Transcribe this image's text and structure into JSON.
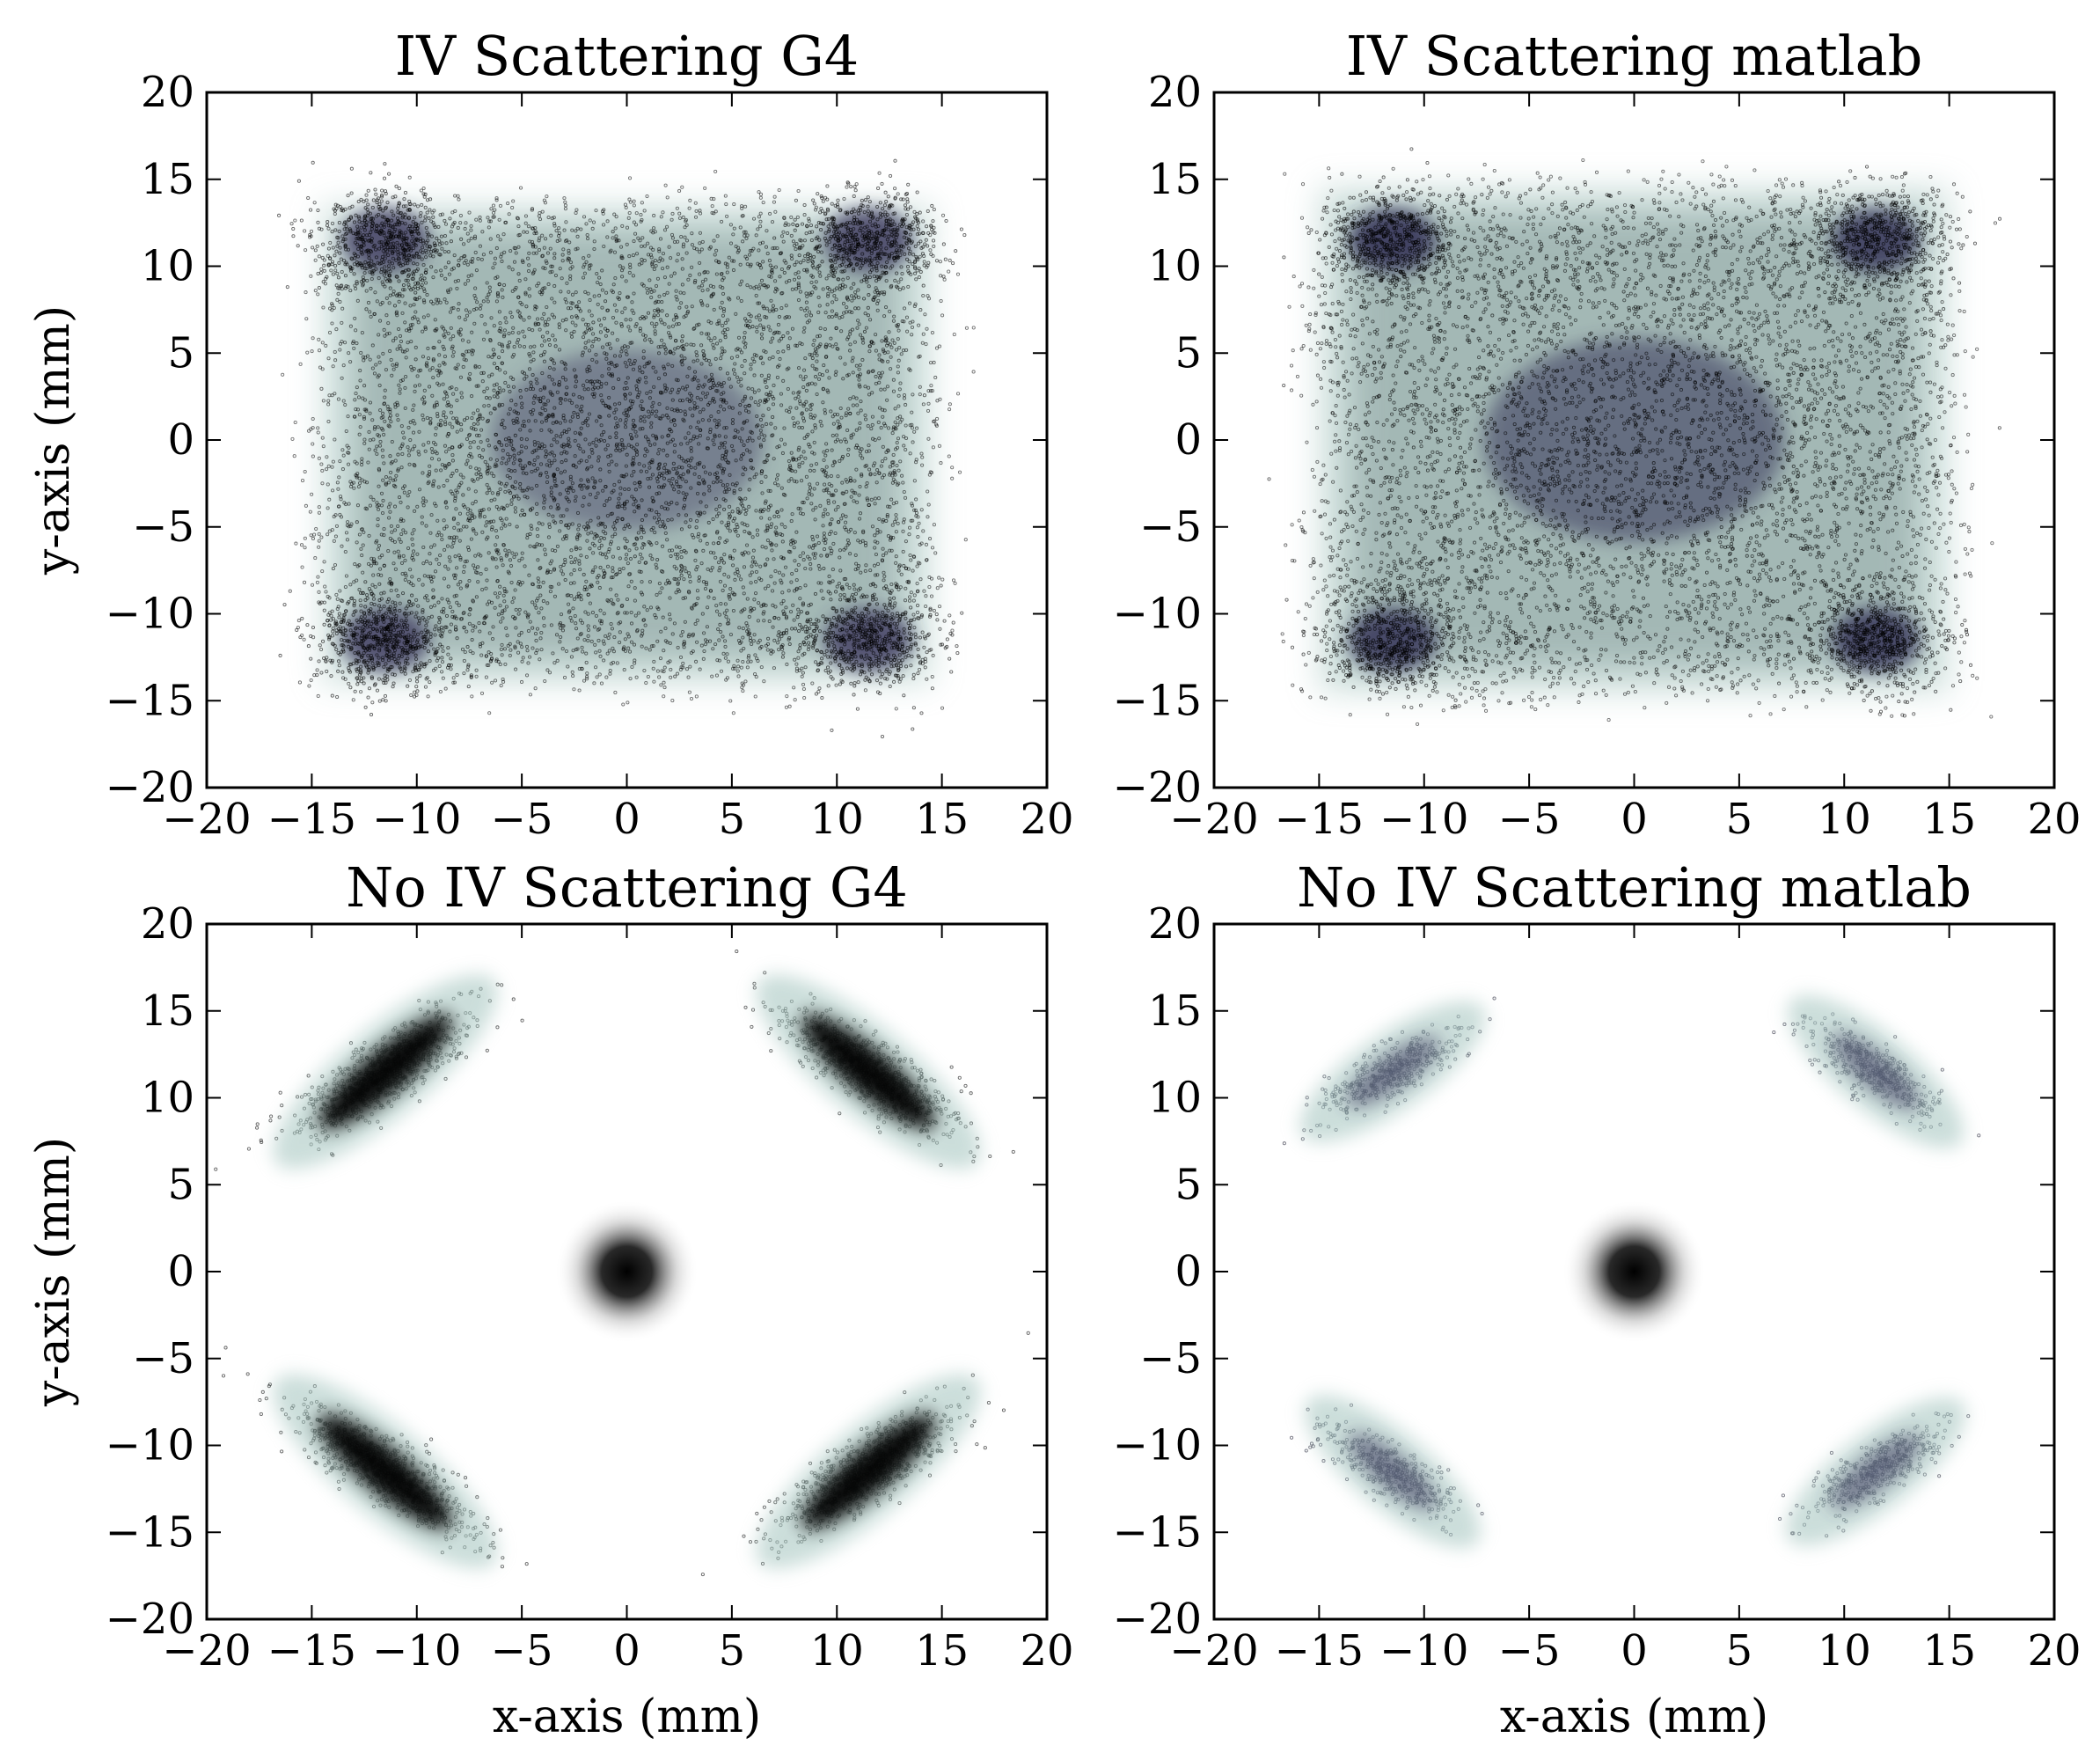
{
  "figure": {
    "xlabel": "x-axis (mm)",
    "ylabel": "y-axis (mm)"
  },
  "chart_data": [
    {
      "type": "scatter",
      "title": "IV Scattering G4",
      "ylabel": "y-axis (mm)",
      "xlabel": "",
      "xlim": [
        -20,
        20
      ],
      "ylim": [
        -20,
        20
      ],
      "xticks": [
        -20,
        -15,
        -10,
        -5,
        0,
        5,
        10,
        15,
        20
      ],
      "yticks": [
        -20,
        -15,
        -10,
        -5,
        0,
        5,
        10,
        15,
        20
      ],
      "grid": false,
      "colors": {
        "density": "#4b4a6a",
        "halo": "#a9c8c2",
        "points": "#000000"
      },
      "density": [
        {
          "x": -11.5,
          "y": 11.5,
          "sx": 1.6,
          "sy": 1.4,
          "w": 0.9
        },
        {
          "x": 11.5,
          "y": 11.5,
          "sx": 1.6,
          "sy": 1.4,
          "w": 0.9
        },
        {
          "x": -11.5,
          "y": -11.5,
          "sx": 1.6,
          "sy": 1.4,
          "w": 0.9
        },
        {
          "x": 11.5,
          "y": -11.5,
          "sx": 1.6,
          "sy": 1.4,
          "w": 0.9
        },
        {
          "x": 0,
          "y": 0,
          "sx": 5.0,
          "sy": 4.0,
          "w": 0.5
        }
      ],
      "scatter_region": {
        "xmin": -14.5,
        "xmax": 14.5,
        "ymin": -14.0,
        "ymax": 13.5
      }
    },
    {
      "type": "scatter",
      "title": "IV Scattering matlab",
      "ylabel": "",
      "xlabel": "",
      "xlim": [
        -20,
        20
      ],
      "ylim": [
        -20,
        20
      ],
      "xticks": [
        -20,
        -15,
        -10,
        -5,
        0,
        5,
        10,
        15,
        20
      ],
      "yticks": [
        -20,
        -15,
        -10,
        -5,
        0,
        5,
        10,
        15,
        20
      ],
      "grid": false,
      "colors": {
        "density": "#3e3c5e",
        "halo": "#a9c8c2",
        "points": "#000000"
      },
      "density": [
        {
          "x": -11.5,
          "y": 11.5,
          "sx": 1.6,
          "sy": 1.4,
          "w": 0.95
        },
        {
          "x": 11.5,
          "y": 11.5,
          "sx": 1.6,
          "sy": 1.4,
          "w": 0.9
        },
        {
          "x": -11.5,
          "y": -11.5,
          "sx": 1.6,
          "sy": 1.4,
          "w": 0.9
        },
        {
          "x": 11.5,
          "y": -11.5,
          "sx": 1.6,
          "sy": 1.4,
          "w": 0.9
        },
        {
          "x": 0,
          "y": 0,
          "sx": 5.5,
          "sy": 4.5,
          "w": 0.6
        }
      ],
      "scatter_region": {
        "xmin": -15.0,
        "xmax": 15.0,
        "ymin": -14.5,
        "ymax": 14.5
      }
    },
    {
      "type": "scatter",
      "title": "No IV Scattering G4",
      "ylabel": "y-axis (mm)",
      "xlabel": "x-axis (mm)",
      "xlim": [
        -20,
        20
      ],
      "ylim": [
        -20,
        20
      ],
      "xticks": [
        -20,
        -15,
        -10,
        -5,
        0,
        5,
        10,
        15,
        20
      ],
      "yticks": [
        -20,
        -15,
        -10,
        -5,
        0,
        5,
        10,
        15,
        20
      ],
      "grid": false,
      "colors": {
        "center": "#000000",
        "halo": "#a9c8c2",
        "points": "#000000"
      },
      "center_spot": {
        "x": 0,
        "y": 0,
        "r": 1.8
      },
      "clusters": [
        {
          "x": -11.5,
          "y": 11.5,
          "angle_deg": 40,
          "length": 9,
          "width": 2.8
        },
        {
          "x": 11.5,
          "y": 11.5,
          "angle_deg": -40,
          "length": 9,
          "width": 2.8
        },
        {
          "x": -11.5,
          "y": -11.5,
          "angle_deg": -40,
          "length": 9,
          "width": 2.8
        },
        {
          "x": 11.5,
          "y": -11.5,
          "angle_deg": 40,
          "length": 9,
          "width": 2.8
        }
      ]
    },
    {
      "type": "scatter",
      "title": "No IV Scattering matlab",
      "ylabel": "",
      "xlabel": "x-axis (mm)",
      "xlim": [
        -20,
        20
      ],
      "ylim": [
        -20,
        20
      ],
      "xticks": [
        -20,
        -15,
        -10,
        -5,
        0,
        5,
        10,
        15,
        20
      ],
      "yticks": [
        -20,
        -15,
        -10,
        -5,
        0,
        5,
        10,
        15,
        20
      ],
      "grid": false,
      "colors": {
        "center": "#000000",
        "halo": "#a9c8c2",
        "points": "#1a1a2e"
      },
      "center_spot": {
        "x": 0,
        "y": 0,
        "r": 1.8
      },
      "clusters": [
        {
          "x": -11.5,
          "y": 11.5,
          "angle_deg": 35,
          "length": 7,
          "width": 2.4
        },
        {
          "x": 11.5,
          "y": 11.5,
          "angle_deg": -40,
          "length": 7,
          "width": 2.4
        },
        {
          "x": -11.5,
          "y": -11.5,
          "angle_deg": -40,
          "length": 7,
          "width": 2.4
        },
        {
          "x": 11.5,
          "y": -11.5,
          "angle_deg": 38,
          "length": 7,
          "width": 2.4
        }
      ]
    }
  ]
}
